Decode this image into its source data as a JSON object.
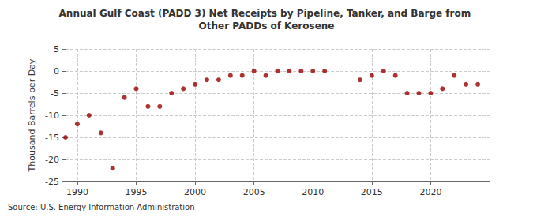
{
  "chart_data": {
    "type": "scatter",
    "title": "Annual Gulf Coast (PADD 3) Net Receipts by Pipeline, Tanker, and Barge from Other PADDs of Kerosene",
    "y_label": "Thousand Barrels per Day",
    "source": "Source: U.S. Energy Information Administration",
    "x": [
      1989,
      1990,
      1991,
      1992,
      1993,
      1994,
      1995,
      1996,
      1997,
      1998,
      1999,
      2000,
      2001,
      2002,
      2003,
      2004,
      2005,
      2006,
      2007,
      2008,
      2009,
      2010,
      2011,
      2012,
      2013,
      2014,
      2015,
      2016,
      2017,
      2018,
      2019,
      2020,
      2021,
      2022,
      2023,
      2024
    ],
    "values": [
      -15,
      -12,
      -10,
      -14,
      -22,
      -6,
      -4,
      -8,
      -8,
      -5,
      -4,
      -3,
      -2,
      -2,
      -1,
      -1,
      0,
      -1,
      0,
      0,
      0,
      0,
      0,
      null,
      null,
      -2,
      -1,
      0,
      -1,
      -5,
      -5,
      -5,
      -4,
      -1,
      -3,
      -3
    ],
    "color": "#990000",
    "marker": "circle",
    "xlim": [
      1989,
      2025
    ],
    "xticks": [
      1990,
      1995,
      2000,
      2005,
      2010,
      2015,
      2020
    ],
    "ylim": [
      -25,
      5
    ],
    "yticks": [
      -25,
      -20,
      -15,
      -10,
      -5,
      0,
      5
    ],
    "grid": true
  }
}
